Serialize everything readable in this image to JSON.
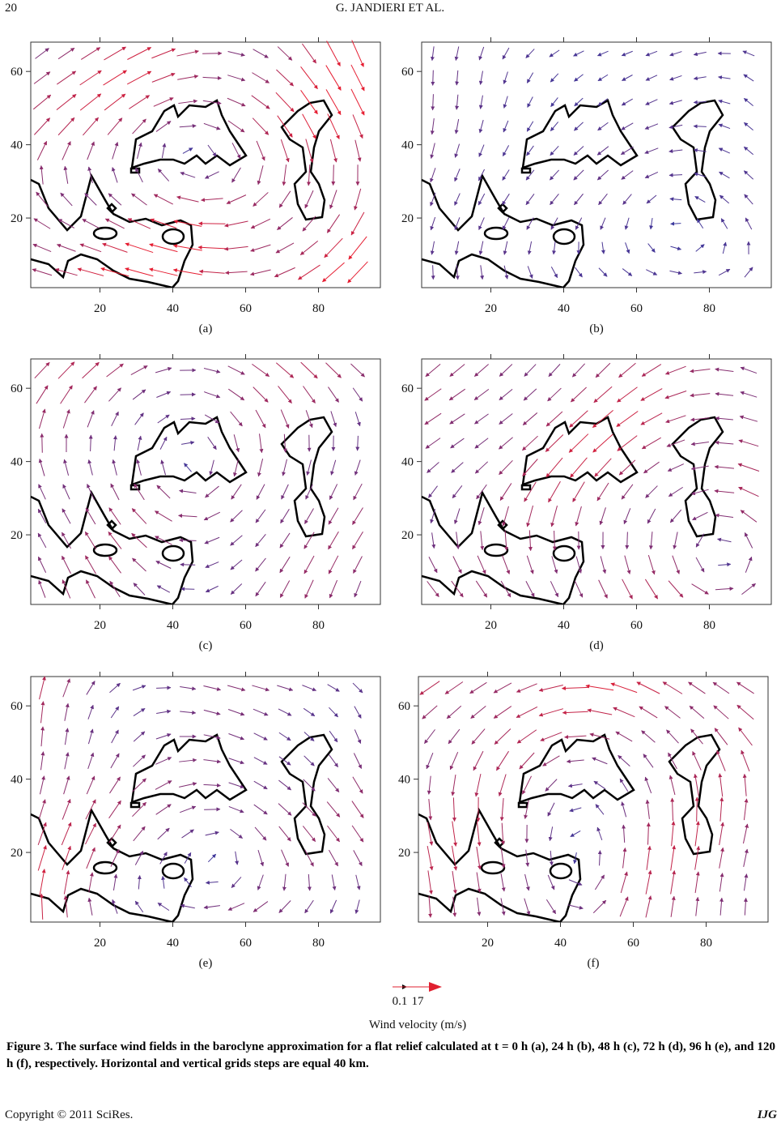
{
  "header": {
    "page": "20",
    "running_title": "G. JANDIERI ET AL."
  },
  "figure": {
    "panels": [
      {
        "label": "(a)",
        "xlim": [
          1,
          97
        ],
        "ylim": [
          1,
          68
        ],
        "xticks": [
          20,
          40,
          60,
          80
        ],
        "yticks": [
          20,
          40,
          60
        ]
      },
      {
        "label": "(b)",
        "xlim": [
          1,
          97
        ],
        "ylim": [
          1,
          68
        ],
        "xticks": [
          20,
          40,
          60,
          80
        ],
        "yticks": [
          20,
          40,
          60
        ]
      },
      {
        "label": "(c)",
        "xlim": [
          1,
          97
        ],
        "ylim": [
          1,
          68
        ],
        "xticks": [
          20,
          40,
          60,
          80
        ],
        "yticks": [
          20,
          40,
          60
        ]
      },
      {
        "label": "(d)",
        "xlim": [
          1,
          97
        ],
        "ylim": [
          1,
          68
        ],
        "xticks": [
          20,
          40,
          60,
          80
        ],
        "yticks": [
          20,
          40,
          60
        ]
      },
      {
        "label": "(e)",
        "xlim": [
          1,
          97
        ],
        "ylim": [
          1,
          68
        ],
        "xticks": [
          20,
          40,
          60,
          80
        ],
        "yticks": [
          20,
          40,
          60
        ]
      },
      {
        "label": "(f)",
        "xlim": [
          1,
          97
        ],
        "ylim": [
          1,
          68
        ],
        "xticks": [
          20,
          40,
          60,
          80
        ],
        "yticks": [
          20,
          40,
          60
        ]
      }
    ],
    "legend": {
      "min": 0.1,
      "max": 17,
      "title": "Wind velocity (m/s)"
    },
    "caption": "Figure 3. The surface wind fields in the baroclyne approximation for a flat relief calculated at t = 0 h (a), 24 h (b), 48 h (c), 72 h (d), 96 h (e), and 120 h (f), respectively. Horizontal and vertical grids steps are equal 40 km."
  },
  "footer": {
    "copyright": "Copyright © 2011 SciRes.",
    "journal": "IJG"
  }
}
